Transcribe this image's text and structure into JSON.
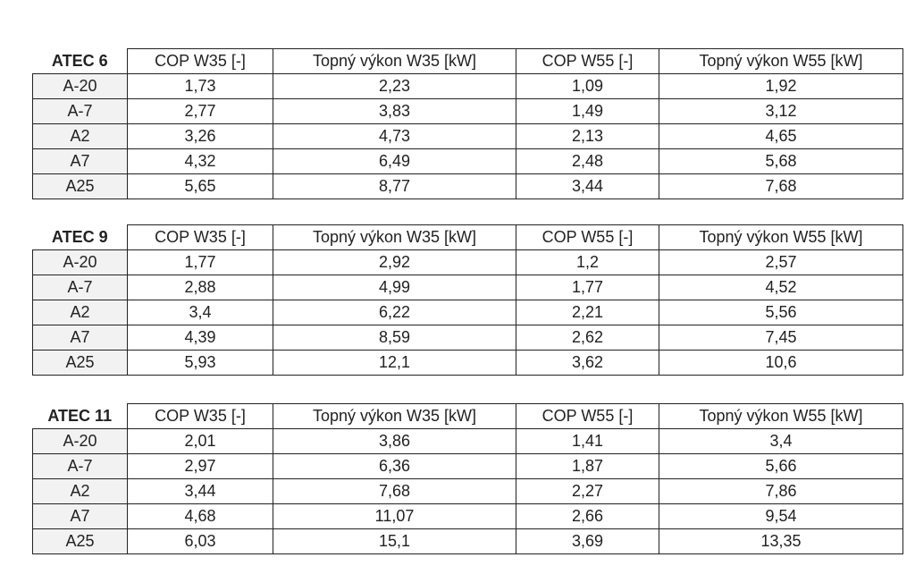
{
  "tables": [
    {
      "header": [
        "ATEC 6",
        "COP W35 [-]",
        "Topný výkon W35 [kW]",
        "COP W55 [-]",
        "Topný výkon W55 [kW]"
      ],
      "rows": [
        [
          "A-20",
          "1,73",
          "2,23",
          "1,09",
          "1,92"
        ],
        [
          "A-7",
          "2,77",
          "3,83",
          "1,49",
          "3,12"
        ],
        [
          "A2",
          "3,26",
          "4,73",
          "2,13",
          "4,65"
        ],
        [
          "A7",
          "4,32",
          "6,49",
          "2,48",
          "5,68"
        ],
        [
          "A25",
          "5,65",
          "8,77",
          "3,44",
          "7,68"
        ]
      ]
    },
    {
      "header": [
        "ATEC 9",
        "COP W35 [-]",
        "Topný výkon W35 [kW]",
        "COP W55 [-]",
        "Topný výkon W55 [kW]"
      ],
      "rows": [
        [
          "A-20",
          "1,77",
          "2,92",
          "1,2",
          "2,57"
        ],
        [
          "A-7",
          "2,88",
          "4,99",
          "1,77",
          "4,52"
        ],
        [
          "A2",
          "3,4",
          "6,22",
          "2,21",
          "5,56"
        ],
        [
          "A7",
          "4,39",
          "8,59",
          "2,62",
          "7,45"
        ],
        [
          "A25",
          "5,93",
          "12,1",
          "3,62",
          "10,6"
        ]
      ]
    },
    {
      "header": [
        "ATEC 11",
        "COP W35 [-]",
        "Topný výkon W35 [kW]",
        "COP W55 [-]",
        "Topný výkon W55 [kW]"
      ],
      "rows": [
        [
          "A-20",
          "2,01",
          "3,86",
          "1,41",
          "3,4"
        ],
        [
          "A-7",
          "2,97",
          "6,36",
          "1,87",
          "5,66"
        ],
        [
          "A2",
          "3,44",
          "7,68",
          "2,27",
          "7,86"
        ],
        [
          "A7",
          "4,68",
          "11,07",
          "2,66",
          "9,54"
        ],
        [
          "A25",
          "6,03",
          "15,1",
          "3,69",
          "13,35"
        ]
      ]
    }
  ]
}
